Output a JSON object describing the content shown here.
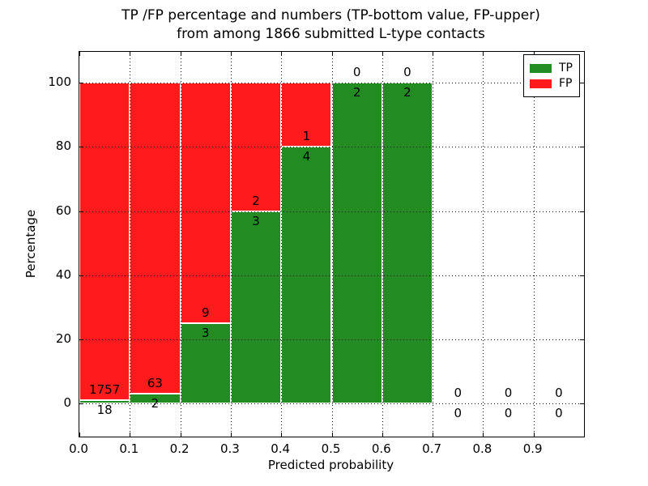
{
  "chart_data": {
    "type": "bar",
    "stacked": true,
    "title": "TP /FP percentage and numbers (TP-bottom value, FP-upper)",
    "subtitle": "from among 1866 submitted L-type contacts",
    "xlabel": "Predicted probability",
    "ylabel": "Percentage",
    "xlim": [
      0.0,
      1.0
    ],
    "ylim": [
      -10.4,
      109.7
    ],
    "xticks": [
      "0.0",
      "0.1",
      "0.2",
      "0.3",
      "0.4",
      "0.5",
      "0.6",
      "0.7",
      "0.8",
      "0.9"
    ],
    "yticks": [
      "0",
      "20",
      "40",
      "60",
      "80",
      "100"
    ],
    "ytick_values": [
      0,
      20,
      40,
      60,
      80,
      100
    ],
    "grid": "dotted",
    "total_submitted": 1866,
    "legend": {
      "position": "upper-right",
      "entries": [
        {
          "label": "TP",
          "color": "#228B22"
        },
        {
          "label": "FP",
          "color": "#FF1B1B"
        }
      ]
    },
    "series": [
      {
        "name": "TP",
        "color": "#228B22",
        "counts": [
          18,
          2,
          3,
          3,
          4,
          2,
          2,
          0,
          0,
          0
        ]
      },
      {
        "name": "FP",
        "color": "#FF1B1B",
        "counts": [
          1757,
          63,
          9,
          2,
          1,
          0,
          0,
          0,
          0,
          0
        ]
      }
    ],
    "bins": [
      {
        "range": "0.0-0.1",
        "tp_count": "18",
        "fp_count": "1757",
        "tp_pct": 1.01,
        "has_bar": true
      },
      {
        "range": "0.1-0.2",
        "tp_count": "2",
        "fp_count": "63",
        "tp_pct": 3.08,
        "has_bar": true
      },
      {
        "range": "0.2-0.3",
        "tp_count": "3",
        "fp_count": "9",
        "tp_pct": 25.0,
        "has_bar": true
      },
      {
        "range": "0.3-0.4",
        "tp_count": "3",
        "fp_count": "2",
        "tp_pct": 60.0,
        "has_bar": true
      },
      {
        "range": "0.4-0.5",
        "tp_count": "4",
        "fp_count": "1",
        "tp_pct": 80.0,
        "has_bar": true
      },
      {
        "range": "0.5-0.6",
        "tp_count": "2",
        "fp_count": "0",
        "tp_pct": 100.0,
        "has_bar": true
      },
      {
        "range": "0.6-0.7",
        "tp_count": "2",
        "fp_count": "0",
        "tp_pct": 100.0,
        "has_bar": true
      },
      {
        "range": "0.7-0.8",
        "tp_count": "0",
        "fp_count": "0",
        "tp_pct": 0.0,
        "has_bar": false
      },
      {
        "range": "0.8-0.9",
        "tp_count": "0",
        "fp_count": "0",
        "tp_pct": 0.0,
        "has_bar": false
      },
      {
        "range": "0.9-1.0",
        "tp_count": "0",
        "fp_count": "0",
        "tp_pct": 0.0,
        "has_bar": false
      }
    ],
    "colors": {
      "tp": "#228B22",
      "fp": "#FF1B1B",
      "bar_edge": "#FFFFFF",
      "grid": "#000000",
      "frame": "#000000",
      "background": "#FFFFFF"
    }
  }
}
